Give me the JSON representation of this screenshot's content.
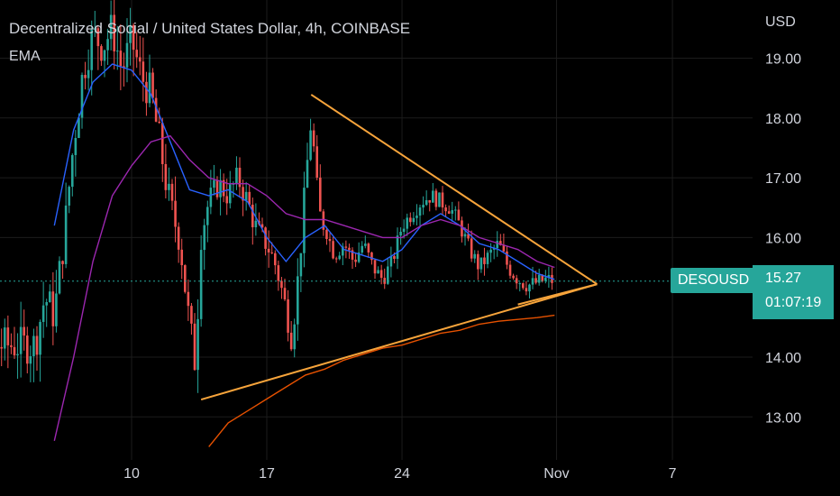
{
  "header": {
    "title": "Decentralized Social / United States Dollar, 4h, COINBASE",
    "indicator": "EMA"
  },
  "price_axis": {
    "unit": "USD",
    "ticks": [
      "19.00",
      "18.00",
      "17.00",
      "16.00",
      "14.00",
      "13.00"
    ]
  },
  "time_axis": {
    "ticks": [
      "10",
      "17",
      "24",
      "Nov",
      "7"
    ]
  },
  "last_price": {
    "symbol": "DESOUSD",
    "value": "15.27",
    "countdown": "01:07:19"
  },
  "colors": {
    "up": "#26a69a",
    "down": "#ef5350",
    "grid": "#1c1c1c",
    "ema_fast": "#2962ff",
    "ema_mid": "#9c27b0",
    "ema_slow": "#e65100",
    "triangle": "#f7a43b",
    "last_price_line": "#26a69a"
  },
  "chart_data": {
    "type": "candlestick",
    "symbol": "DESOUSD",
    "timeframe": "4h",
    "exchange": "COINBASE",
    "ylim": [
      12.5,
      19.6
    ],
    "x_ticks": [
      {
        "label": "10",
        "day": 10
      },
      {
        "label": "17",
        "day": 17
      },
      {
        "label": "24",
        "day": 24
      },
      {
        "label": "Nov",
        "day": 32
      },
      {
        "label": "7",
        "day": 38
      }
    ],
    "close_path": [
      {
        "day": 5.0,
        "price": 14.2
      },
      {
        "day": 5.5,
        "price": 15.0
      },
      {
        "day": 6.0,
        "price": 14.7
      },
      {
        "day": 6.5,
        "price": 16.0
      },
      {
        "day": 7.0,
        "price": 17.6
      },
      {
        "day": 7.5,
        "price": 18.8
      },
      {
        "day": 8.0,
        "price": 19.4
      },
      {
        "day": 8.5,
        "price": 19.2
      },
      {
        "day": 9.0,
        "price": 19.5
      },
      {
        "day": 9.5,
        "price": 18.8
      },
      {
        "day": 10.0,
        "price": 19.3
      },
      {
        "day": 10.5,
        "price": 18.7
      },
      {
        "day": 11.0,
        "price": 18.4
      },
      {
        "day": 11.5,
        "price": 17.5
      },
      {
        "day": 12.0,
        "price": 16.5
      },
      {
        "day": 12.5,
        "price": 16.0
      },
      {
        "day": 13.0,
        "price": 14.5
      },
      {
        "day": 13.3,
        "price": 13.9
      },
      {
        "day": 13.6,
        "price": 16.1
      },
      {
        "day": 14.0,
        "price": 16.6
      },
      {
        "day": 14.5,
        "price": 16.9
      },
      {
        "day": 15.0,
        "price": 16.7
      },
      {
        "day": 15.5,
        "price": 17.0
      },
      {
        "day": 16.0,
        "price": 16.6
      },
      {
        "day": 16.5,
        "price": 16.1
      },
      {
        "day": 17.0,
        "price": 15.9
      },
      {
        "day": 17.5,
        "price": 15.5
      },
      {
        "day": 18.0,
        "price": 14.8
      },
      {
        "day": 18.3,
        "price": 14.3
      },
      {
        "day": 18.7,
        "price": 15.6
      },
      {
        "day": 19.0,
        "price": 16.9
      },
      {
        "day": 19.3,
        "price": 18.0
      },
      {
        "day": 19.7,
        "price": 16.4
      },
      {
        "day": 20.0,
        "price": 16.2
      },
      {
        "day": 20.5,
        "price": 15.7
      },
      {
        "day": 21.0,
        "price": 15.9
      },
      {
        "day": 21.5,
        "price": 15.6
      },
      {
        "day": 22.0,
        "price": 15.9
      },
      {
        "day": 22.5,
        "price": 15.5
      },
      {
        "day": 23.0,
        "price": 15.3
      },
      {
        "day": 23.5,
        "price": 15.6
      },
      {
        "day": 24.0,
        "price": 16.2
      },
      {
        "day": 24.5,
        "price": 16.4
      },
      {
        "day": 25.0,
        "price": 16.6
      },
      {
        "day": 25.5,
        "price": 16.7
      },
      {
        "day": 26.0,
        "price": 16.6
      },
      {
        "day": 26.5,
        "price": 16.5
      },
      {
        "day": 27.0,
        "price": 16.2
      },
      {
        "day": 27.5,
        "price": 15.8
      },
      {
        "day": 28.0,
        "price": 15.5
      },
      {
        "day": 28.5,
        "price": 15.7
      },
      {
        "day": 29.0,
        "price": 15.9
      },
      {
        "day": 29.5,
        "price": 15.5
      },
      {
        "day": 30.0,
        "price": 15.3
      },
      {
        "day": 30.5,
        "price": 15.2
      },
      {
        "day": 31.0,
        "price": 15.25
      },
      {
        "day": 31.5,
        "price": 15.3
      },
      {
        "day": 31.9,
        "price": 15.27
      }
    ],
    "ema_fast": [
      {
        "day": 6.0,
        "price": 16.2
      },
      {
        "day": 7.0,
        "price": 17.8
      },
      {
        "day": 8.0,
        "price": 18.6
      },
      {
        "day": 9.0,
        "price": 18.9
      },
      {
        "day": 10.0,
        "price": 18.8
      },
      {
        "day": 11.0,
        "price": 18.4
      },
      {
        "day": 12.0,
        "price": 17.6
      },
      {
        "day": 13.0,
        "price": 16.8
      },
      {
        "day": 14.0,
        "price": 16.7
      },
      {
        "day": 15.0,
        "price": 16.8
      },
      {
        "day": 16.0,
        "price": 16.6
      },
      {
        "day": 17.0,
        "price": 16.0
      },
      {
        "day": 18.0,
        "price": 15.6
      },
      {
        "day": 19.0,
        "price": 16.0
      },
      {
        "day": 20.0,
        "price": 16.2
      },
      {
        "day": 21.0,
        "price": 15.8
      },
      {
        "day": 22.0,
        "price": 15.7
      },
      {
        "day": 23.0,
        "price": 15.6
      },
      {
        "day": 24.0,
        "price": 15.8
      },
      {
        "day": 25.0,
        "price": 16.2
      },
      {
        "day": 26.0,
        "price": 16.4
      },
      {
        "day": 27.0,
        "price": 16.2
      },
      {
        "day": 28.0,
        "price": 15.9
      },
      {
        "day": 29.0,
        "price": 15.8
      },
      {
        "day": 30.0,
        "price": 15.6
      },
      {
        "day": 31.0,
        "price": 15.4
      },
      {
        "day": 31.9,
        "price": 15.3
      }
    ],
    "ema_mid": [
      {
        "day": 6.0,
        "price": 12.6
      },
      {
        "day": 7.0,
        "price": 14.0
      },
      {
        "day": 8.0,
        "price": 15.6
      },
      {
        "day": 9.0,
        "price": 16.7
      },
      {
        "day": 10.0,
        "price": 17.2
      },
      {
        "day": 11.0,
        "price": 17.6
      },
      {
        "day": 12.0,
        "price": 17.7
      },
      {
        "day": 13.0,
        "price": 17.3
      },
      {
        "day": 14.0,
        "price": 17.0
      },
      {
        "day": 15.0,
        "price": 16.9
      },
      {
        "day": 16.0,
        "price": 16.9
      },
      {
        "day": 17.0,
        "price": 16.7
      },
      {
        "day": 18.0,
        "price": 16.4
      },
      {
        "day": 19.0,
        "price": 16.3
      },
      {
        "day": 20.0,
        "price": 16.3
      },
      {
        "day": 21.0,
        "price": 16.2
      },
      {
        "day": 22.0,
        "price": 16.1
      },
      {
        "day": 23.0,
        "price": 16.0
      },
      {
        "day": 24.0,
        "price": 16.0
      },
      {
        "day": 25.0,
        "price": 16.2
      },
      {
        "day": 26.0,
        "price": 16.3
      },
      {
        "day": 27.0,
        "price": 16.2
      },
      {
        "day": 28.0,
        "price": 16.0
      },
      {
        "day": 29.0,
        "price": 15.9
      },
      {
        "day": 30.0,
        "price": 15.8
      },
      {
        "day": 31.0,
        "price": 15.6
      },
      {
        "day": 31.9,
        "price": 15.5
      }
    ],
    "ema_slow": [
      {
        "day": 14.0,
        "price": 12.5
      },
      {
        "day": 15.0,
        "price": 12.9
      },
      {
        "day": 16.0,
        "price": 13.1
      },
      {
        "day": 17.0,
        "price": 13.3
      },
      {
        "day": 18.0,
        "price": 13.5
      },
      {
        "day": 19.0,
        "price": 13.7
      },
      {
        "day": 20.0,
        "price": 13.8
      },
      {
        "day": 21.0,
        "price": 13.95
      },
      {
        "day": 22.0,
        "price": 14.05
      },
      {
        "day": 23.0,
        "price": 14.15
      },
      {
        "day": 24.0,
        "price": 14.2
      },
      {
        "day": 25.0,
        "price": 14.3
      },
      {
        "day": 26.0,
        "price": 14.4
      },
      {
        "day": 27.0,
        "price": 14.45
      },
      {
        "day": 28.0,
        "price": 14.55
      },
      {
        "day": 29.0,
        "price": 14.6
      },
      {
        "day": 30.0,
        "price": 14.63
      },
      {
        "day": 31.0,
        "price": 14.66
      },
      {
        "day": 31.9,
        "price": 14.7
      }
    ],
    "trendlines": [
      {
        "name": "resistance",
        "from": {
          "day": 19.3,
          "price": 18.39
        },
        "to": {
          "day": 34.1,
          "price": 15.22
        }
      },
      {
        "name": "support",
        "from": {
          "day": 13.6,
          "price": 13.29
        },
        "to": {
          "day": 34.1,
          "price": 15.22
        }
      },
      {
        "name": "support-upper",
        "from": {
          "day": 30.0,
          "price": 14.88
        },
        "to": {
          "day": 34.1,
          "price": 15.22
        }
      }
    ],
    "last_price": 15.27
  }
}
